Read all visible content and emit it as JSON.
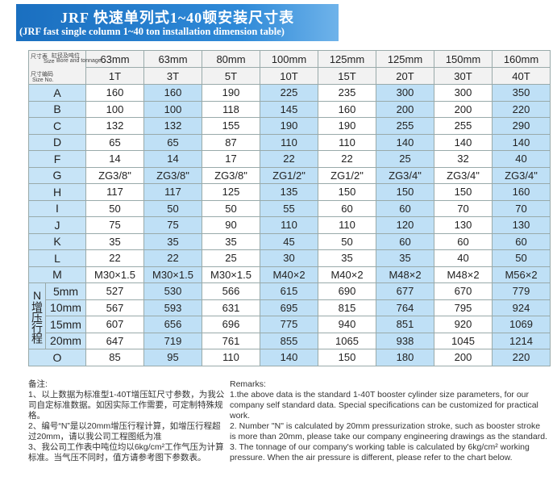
{
  "header": {
    "title": "JRF 快速单列式1~40顿安装尺寸表",
    "subtitle": "(JRF fast single column 1~40 ton installation dimension table)"
  },
  "table": {
    "corner": {
      "top_left": "尺寸表",
      "top_right": "缸径及吨位",
      "top_size": "Size",
      "top_en": "Bore and tonnage",
      "bottom_left": "尺寸编码",
      "bottom_en": "Size No."
    },
    "bores": [
      "63mm",
      "63mm",
      "80mm",
      "100mm",
      "125mm",
      "125mm",
      "150mm",
      "160mm"
    ],
    "tonnages": [
      "1T",
      "3T",
      "5T",
      "10T",
      "15T",
      "20T",
      "30T",
      "40T"
    ],
    "rows": [
      {
        "label": "A",
        "values": [
          160,
          160,
          190,
          225,
          235,
          300,
          300,
          350
        ]
      },
      {
        "label": "B",
        "values": [
          100,
          100,
          118,
          145,
          160,
          200,
          200,
          220
        ]
      },
      {
        "label": "C",
        "values": [
          132,
          132,
          155,
          190,
          190,
          255,
          255,
          290
        ]
      },
      {
        "label": "D",
        "values": [
          65,
          65,
          87,
          110,
          110,
          140,
          140,
          140
        ]
      },
      {
        "label": "F",
        "values": [
          14,
          14,
          17,
          22,
          22,
          25,
          32,
          40
        ]
      },
      {
        "label": "G",
        "values": [
          "ZG3/8\"",
          "ZG3/8\"",
          "ZG3/8\"",
          "ZG1/2\"",
          "ZG1/2\"",
          "ZG3/4\"",
          "ZG3/4\"",
          "ZG3/4\""
        ]
      },
      {
        "label": "H",
        "values": [
          117,
          117,
          125,
          135,
          150,
          150,
          150,
          160
        ]
      },
      {
        "label": "I",
        "values": [
          50,
          50,
          50,
          55,
          60,
          60,
          70,
          70
        ]
      },
      {
        "label": "J",
        "values": [
          75,
          75,
          90,
          110,
          110,
          120,
          130,
          130
        ]
      },
      {
        "label": "K",
        "values": [
          35,
          35,
          35,
          45,
          50,
          60,
          60,
          60
        ]
      },
      {
        "label": "L",
        "values": [
          22,
          22,
          25,
          30,
          35,
          35,
          40,
          50
        ]
      },
      {
        "label": "M",
        "values": [
          "M30×1.5",
          "M30×1.5",
          "M30×1.5",
          "M40×2",
          "M40×2",
          "M48×2",
          "M48×2",
          "M56×2"
        ]
      }
    ],
    "n_label": "N增压行程",
    "n_rows": [
      {
        "label": "5mm",
        "values": [
          527,
          530,
          566,
          615,
          690,
          677,
          670,
          779
        ]
      },
      {
        "label": "10mm",
        "values": [
          567,
          593,
          631,
          695,
          815,
          764,
          795,
          924
        ]
      },
      {
        "label": "15mm",
        "values": [
          607,
          656,
          696,
          775,
          940,
          851,
          920,
          1069
        ]
      },
      {
        "label": "20mm",
        "values": [
          647,
          719,
          761,
          855,
          1065,
          938,
          1045,
          1214
        ]
      }
    ],
    "tail_rows": [
      {
        "label": "O",
        "values": [
          85,
          95,
          110,
          140,
          150,
          180,
          200,
          220
        ]
      }
    ]
  },
  "notes_cn": {
    "title": "备注:",
    "items": [
      "1、以上数据为标准型1-40T增压缸尺寸参数，为我公司自定标准数据。如因实际工作需要，可定制特殊规格。",
      "2、编号“N”是以20mm增压行程计算，如增压行程超过20mm，请以我公司工程图纸为准",
      "3、我公司工作表中吨位均以6kg/cm²工作气压为计算标准。当气压不同时，值方请参考图下参数表。"
    ]
  },
  "notes_en": {
    "title": "Remarks:",
    "items": [
      "1.the above data is the standard 1-40T booster cylinder size parameters, for our company self standard data. Special specifications can be customized for practical work.",
      "2. Number \"N\" is calculated by 20mm pressurization stroke, such as booster stroke is more than 20mm, please take our company engineering drawings as the standard.",
      "3. The tonnage of our company's working table is calculated by 6kg/cm² working pressure. When the air pressure is different, please refer to the chart below."
    ]
  }
}
